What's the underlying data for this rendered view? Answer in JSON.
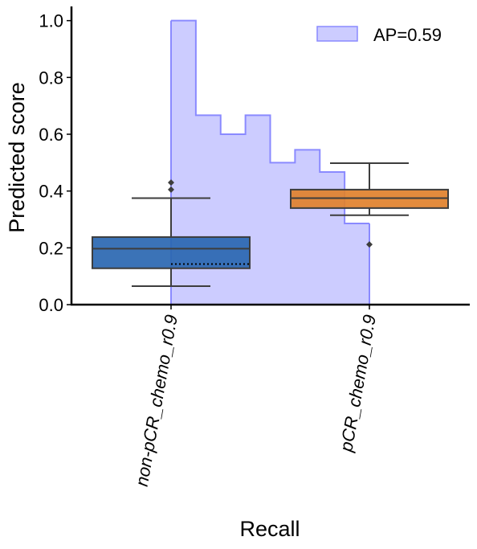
{
  "chart_data": {
    "type": "box",
    "title": "",
    "xlabel": "Recall",
    "ylabel": "Predicted score",
    "ylim": [
      0,
      1.05
    ],
    "yticks": [
      "0.0",
      "0.2",
      "0.4",
      "0.6",
      "0.8",
      "1.0"
    ],
    "grid": false,
    "legend_position": "top-right",
    "categories": [
      "non-pCR_chemo_r0.9",
      "pCR_chemo_r0.9"
    ],
    "boxes": [
      {
        "category": "non-pCR_chemo_r0.9",
        "whisker_low": 0.065,
        "q1": 0.128,
        "median": 0.197,
        "q3": 0.238,
        "whisker_high": 0.375,
        "outliers": [
          0.405,
          0.43
        ],
        "color": "#2a67b1"
      },
      {
        "category": "pCR_chemo_r0.9",
        "whisker_low": 0.315,
        "q1": 0.34,
        "median": 0.375,
        "q3": 0.405,
        "whisker_high": 0.498,
        "outliers": [
          0.212
        ],
        "color": "#e1812c"
      }
    ],
    "precision_curve": {
      "name": "AP=0.59",
      "color": "#8a8aff",
      "fill_color": "#ccccff",
      "x_start": 0,
      "x_end": 1,
      "values": [
        1.0,
        0.667,
        0.6,
        0.667,
        0.5,
        0.545,
        0.467,
        0.286
      ]
    },
    "baseline": {
      "value": 0.143,
      "style": "dotted",
      "x_from": 0,
      "x_to": 0.4
    }
  }
}
